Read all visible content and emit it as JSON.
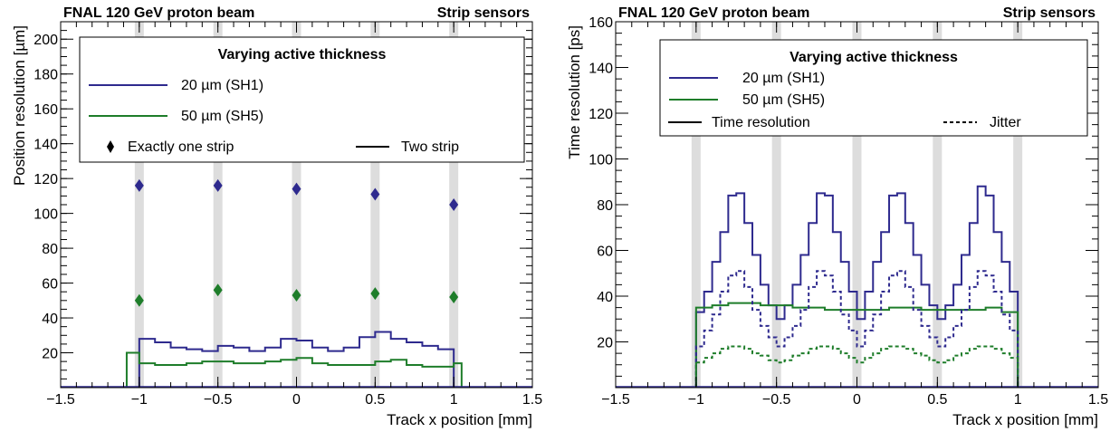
{
  "chart_data": [
    {
      "type": "line",
      "header_left": "FNAL 120 GeV proton beam",
      "header_right": "Strip sensors",
      "xlabel": "Track x position [mm]",
      "ylabel": "Position resolution [µm]",
      "xlim": [
        -1.5,
        1.5
      ],
      "ylim": [
        0,
        210
      ],
      "xticks": [
        -1.5,
        -1,
        -0.5,
        0,
        0.5,
        1,
        1.5
      ],
      "xtick_labels": [
        "−1.5",
        "−1",
        "−0.5",
        "0",
        "0.5",
        "1",
        "1.5"
      ],
      "yticks": [
        20,
        40,
        60,
        80,
        100,
        120,
        140,
        160,
        180,
        200
      ],
      "ytick_labels": [
        "20",
        "40",
        "60",
        "80",
        "100",
        "120",
        "140",
        "160",
        "180",
        "200"
      ],
      "grid": false,
      "strip_bands": [
        -1.0,
        -0.5,
        0.0,
        0.5,
        1.0
      ],
      "legend": {
        "title": "Varying active thickness",
        "position": "top",
        "entries": [
          {
            "label": "20 µm  (SH1)",
            "color": "#2e2a8e"
          },
          {
            "label": "50 µm  (SH5)",
            "color": "#1e7d2a"
          },
          {
            "label": "Exactly one strip",
            "symbol": "diamond"
          },
          {
            "label": "Two strip",
            "symbol": "line"
          }
        ]
      },
      "series": [
        {
          "name": "20 µm  (SH1)",
          "style": "markers",
          "color": "#2e2a8e",
          "x": [
            -1.0,
            -0.5,
            0.0,
            0.5,
            1.0
          ],
          "y": [
            116,
            116,
            114,
            111,
            105
          ]
        },
        {
          "name": "50 µm  (SH5)",
          "style": "markers",
          "color": "#1e7d2a",
          "x": [
            -1.0,
            -0.5,
            0.0,
            0.5,
            1.0
          ],
          "y": [
            50,
            56,
            53,
            54,
            52
          ]
        },
        {
          "name": "20 µm  (SH1)",
          "style": "step",
          "color": "#2e2a8e",
          "edges": [
            -1.0,
            -0.9,
            -0.8,
            -0.7,
            -0.6,
            -0.5,
            -0.4,
            -0.3,
            -0.2,
            -0.1,
            -0.0,
            0.1,
            0.2,
            0.3,
            0.4,
            0.5,
            0.6,
            0.7,
            0.8,
            0.9,
            1.0
          ],
          "y": [
            28,
            26,
            23,
            22,
            21,
            24,
            23,
            21,
            23,
            28,
            27,
            23,
            21,
            23,
            29,
            32,
            28,
            26,
            24,
            22
          ]
        },
        {
          "name": "50 µm  (SH5)",
          "style": "step",
          "color": "#1e7d2a",
          "edges": [
            -1.08,
            -1.0,
            -0.9,
            -0.8,
            -0.7,
            -0.6,
            -0.5,
            -0.4,
            -0.3,
            -0.2,
            -0.1,
            -0.0,
            0.1,
            0.2,
            0.3,
            0.4,
            0.5,
            0.6,
            0.7,
            0.8,
            0.9,
            1.0,
            1.05
          ],
          "y": [
            20,
            14,
            13,
            13,
            14,
            15,
            15,
            14,
            14,
            15,
            16,
            17,
            14,
            13,
            13,
            13,
            15,
            16,
            13,
            12,
            12,
            14
          ]
        }
      ]
    },
    {
      "type": "line",
      "header_left": "FNAL 120 GeV proton beam",
      "header_right": "Strip sensors",
      "xlabel": "Track x position [mm]",
      "ylabel": "Time resolution [ps]",
      "xlim": [
        -1.5,
        1.5
      ],
      "ylim": [
        0,
        160
      ],
      "xticks": [
        -1.5,
        -1,
        -0.5,
        0,
        0.5,
        1,
        1.5
      ],
      "xtick_labels": [
        "−1.5",
        "−1",
        "−0.5",
        "0",
        "0.5",
        "1",
        "1.5"
      ],
      "yticks": [
        20,
        40,
        60,
        80,
        100,
        120,
        140,
        160
      ],
      "ytick_labels": [
        "20",
        "40",
        "60",
        "80",
        "100",
        "120",
        "140",
        "160"
      ],
      "grid": false,
      "strip_bands": [
        -1.0,
        -0.5,
        0.0,
        0.5,
        1.0
      ],
      "legend": {
        "title": "Varying active thickness",
        "position": "top",
        "entries": [
          {
            "label": "20 µm  (SH1)",
            "color": "#2e2a8e"
          },
          {
            "label": "50 µm  (SH5)",
            "color": "#1e7d2a"
          },
          {
            "label": "Time resolution",
            "symbol": "line"
          },
          {
            "label": "Jitter",
            "symbol": "dashed"
          }
        ]
      },
      "series": [
        {
          "name": "20 µm  (SH1)",
          "style": "step",
          "dash": false,
          "color": "#2e2a8e",
          "edges": [
            -1.0,
            -0.95,
            -0.9,
            -0.85,
            -0.8,
            -0.75,
            -0.7,
            -0.65,
            -0.6,
            -0.55,
            -0.5,
            -0.45,
            -0.4,
            -0.35,
            -0.3,
            -0.25,
            -0.2,
            -0.15,
            -0.1,
            -0.05,
            0.0,
            0.05,
            0.1,
            0.15,
            0.2,
            0.25,
            0.3,
            0.35,
            0.4,
            0.45,
            0.5,
            0.55,
            0.6,
            0.65,
            0.7,
            0.75,
            0.8,
            0.85,
            0.9,
            0.95,
            1.0
          ],
          "y": [
            33,
            42,
            55,
            68,
            84,
            85,
            72,
            58,
            45,
            36,
            30,
            36,
            45,
            58,
            72,
            85,
            84,
            68,
            55,
            42,
            30,
            42,
            55,
            68,
            84,
            85,
            72,
            58,
            45,
            36,
            30,
            36,
            45,
            58,
            72,
            88,
            84,
            68,
            55,
            42
          ]
        },
        {
          "name": "50 µm  (SH5)",
          "style": "step",
          "dash": false,
          "color": "#1e7d2a",
          "edges": [
            -1.0,
            -0.9,
            -0.8,
            -0.7,
            -0.6,
            -0.5,
            -0.4,
            -0.3,
            -0.2,
            -0.1,
            0.0,
            0.1,
            0.2,
            0.3,
            0.4,
            0.5,
            0.6,
            0.7,
            0.8,
            0.9,
            1.0
          ],
          "y": [
            35,
            36,
            37,
            37,
            36,
            36,
            35,
            35,
            34,
            34,
            34,
            34,
            35,
            35,
            34,
            34,
            34,
            34,
            35,
            33
          ]
        },
        {
          "name": "20 µm  (SH1)",
          "style": "step",
          "dash": true,
          "color": "#2e2a8e",
          "edges": [
            -1.0,
            -0.95,
            -0.9,
            -0.85,
            -0.8,
            -0.75,
            -0.7,
            -0.65,
            -0.6,
            -0.55,
            -0.5,
            -0.45,
            -0.4,
            -0.35,
            -0.3,
            -0.25,
            -0.2,
            -0.15,
            -0.1,
            -0.05,
            0.0,
            0.05,
            0.1,
            0.15,
            0.2,
            0.25,
            0.3,
            0.35,
            0.4,
            0.45,
            0.5,
            0.55,
            0.6,
            0.65,
            0.7,
            0.75,
            0.8,
            0.85,
            0.9,
            0.95,
            1.0
          ],
          "y": [
            18,
            25,
            32,
            42,
            49,
            51,
            44,
            34,
            27,
            22,
            18,
            22,
            27,
            34,
            44,
            51,
            49,
            42,
            32,
            25,
            18,
            25,
            32,
            42,
            49,
            51,
            44,
            34,
            27,
            22,
            18,
            22,
            27,
            34,
            44,
            51,
            49,
            42,
            32,
            25
          ]
        },
        {
          "name": "50 µm  (SH5)",
          "style": "step",
          "dash": true,
          "color": "#1e7d2a",
          "edges": [
            -1.0,
            -0.95,
            -0.9,
            -0.85,
            -0.8,
            -0.75,
            -0.7,
            -0.65,
            -0.6,
            -0.55,
            -0.5,
            -0.45,
            -0.4,
            -0.35,
            -0.3,
            -0.25,
            -0.2,
            -0.15,
            -0.1,
            -0.05,
            0.0,
            0.05,
            0.1,
            0.15,
            0.2,
            0.25,
            0.3,
            0.35,
            0.4,
            0.45,
            0.5,
            0.55,
            0.6,
            0.65,
            0.7,
            0.75,
            0.8,
            0.85,
            0.9,
            0.95,
            1.0
          ],
          "y": [
            11,
            13,
            15,
            17,
            18,
            18,
            17,
            15,
            14,
            12,
            11,
            12,
            14,
            15,
            17,
            18,
            18,
            17,
            15,
            13,
            11,
            13,
            15,
            17,
            18,
            18,
            17,
            15,
            14,
            12,
            11,
            12,
            14,
            15,
            17,
            18,
            18,
            17,
            15,
            13
          ]
        }
      ]
    }
  ]
}
